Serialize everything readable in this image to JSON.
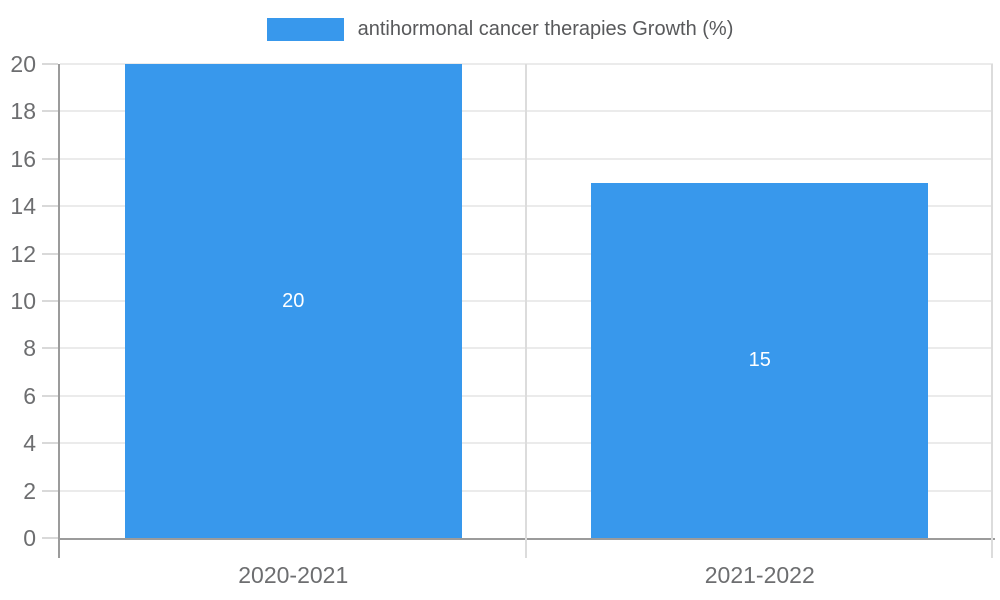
{
  "legend": {
    "label": "antihormonal cancer therapies Growth (%)",
    "swatch_color": "#3898ec"
  },
  "chart_data": {
    "type": "bar",
    "title": "antihormonal cancer therapies Growth (%)",
    "categories": [
      "2020-2021",
      "2021-2022"
    ],
    "series": [
      {
        "name": "antihormonal cancer therapies Growth (%)",
        "values": [
          20,
          15
        ],
        "color": "#3898ec"
      }
    ],
    "value_labels": [
      "20",
      "15"
    ],
    "xlabel": "",
    "ylabel": "",
    "ylim": [
      0,
      20
    ],
    "yticks": [
      0,
      2,
      4,
      6,
      8,
      10,
      12,
      14,
      16,
      18,
      20
    ],
    "grid": true,
    "legend_position": "top-center",
    "colors": {
      "bar": "#3898ec",
      "axis": "#9b9b9b",
      "gridline": "#ebebeb",
      "tick_label": "#6d6e70",
      "legend_text": "#58595b",
      "bar_value_text": "#ffffff",
      "background": "#ffffff"
    }
  }
}
